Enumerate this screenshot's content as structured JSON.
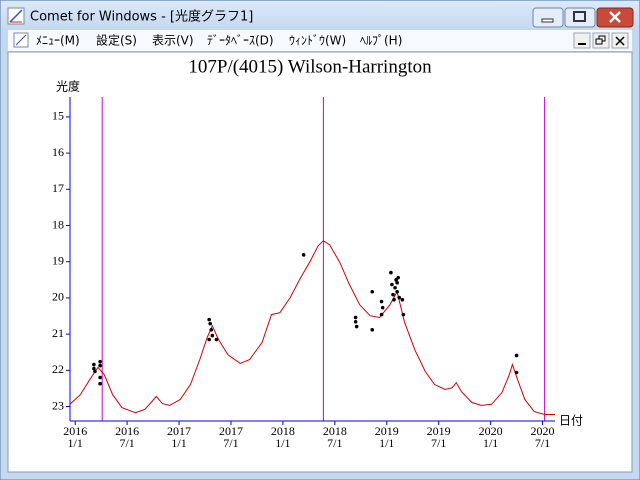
{
  "window": {
    "title": "Comet for Windows - [光度グラフ1]",
    "menu": [
      "ﾒﾆｭｰ(M)",
      "設定(S)",
      "表示(V)",
      "ﾃﾞｰﾀﾍﾞｰｽ(D)",
      "ｳｨﾝﾄﾞｳ(W)",
      "ﾍﾙﾌﾟ(H)"
    ]
  },
  "chart_data": {
    "type": "line",
    "title": "107P/(4015) Wilson-Harrington",
    "y_label": "光度",
    "x_label": "日付",
    "axis_color": "#0000ff",
    "xlim": [
      2015.95,
      2020.62
    ],
    "ylim": [
      14.45,
      23.4
    ],
    "y_inverted": true,
    "yticks": [
      15,
      16,
      17,
      18,
      19,
      20,
      21,
      22,
      23
    ],
    "xticks": [
      {
        "value": 2016.0,
        "label": [
          "2016",
          "1/1"
        ]
      },
      {
        "value": 2016.5,
        "label": [
          "2016",
          "7/1"
        ]
      },
      {
        "value": 2017.0,
        "label": [
          "2017",
          "1/1"
        ]
      },
      {
        "value": 2017.5,
        "label": [
          "2017",
          "7/1"
        ]
      },
      {
        "value": 2018.0,
        "label": [
          "2018",
          "1/1"
        ]
      },
      {
        "value": 2018.5,
        "label": [
          "2018",
          "7/1"
        ]
      },
      {
        "value": 2019.0,
        "label": [
          "2019",
          "1/1"
        ]
      },
      {
        "value": 2019.5,
        "label": [
          "2019",
          "7/1"
        ]
      },
      {
        "value": 2020.0,
        "label": [
          "2020",
          "1/1"
        ]
      },
      {
        "value": 2020.5,
        "label": [
          "2020",
          "7/1"
        ]
      }
    ],
    "markers": {
      "color": "#cc00cc",
      "x": [
        2016.26,
        2018.39,
        2020.52
      ]
    },
    "curve": {
      "color": "#d00000",
      "x": [
        2015.95,
        2016.05,
        2016.14,
        2016.22,
        2016.28,
        2016.36,
        2016.45,
        2016.58,
        2016.67,
        2016.74,
        2016.78,
        2016.84,
        2016.91,
        2017.01,
        2017.11,
        2017.2,
        2017.27,
        2017.32,
        2017.38,
        2017.47,
        2017.59,
        2017.68,
        2017.8,
        2017.89,
        2017.97,
        2018.07,
        2018.16,
        2018.26,
        2018.34,
        2018.39,
        2018.45,
        2018.55,
        2018.64,
        2018.74,
        2018.84,
        2018.93,
        2019.03,
        2019.1,
        2019.17,
        2019.27,
        2019.37,
        2019.46,
        2019.56,
        2019.63,
        2019.67,
        2019.72,
        2019.82,
        2019.91,
        2020.01,
        2020.11,
        2020.18,
        2020.21,
        2020.26,
        2020.33,
        2020.42,
        2020.52,
        2020.62
      ],
      "values": [
        22.94,
        22.67,
        22.26,
        21.92,
        22.12,
        22.67,
        23.03,
        23.17,
        23.08,
        22.86,
        22.72,
        22.92,
        22.97,
        22.81,
        22.39,
        21.7,
        21.1,
        20.77,
        21.15,
        21.57,
        21.81,
        21.7,
        21.23,
        20.46,
        20.41,
        19.99,
        19.5,
        19.0,
        18.56,
        18.42,
        18.53,
        19.03,
        19.63,
        20.19,
        20.49,
        20.54,
        20.19,
        19.83,
        20.66,
        21.43,
        22.03,
        22.39,
        22.53,
        22.48,
        22.34,
        22.59,
        22.89,
        22.97,
        22.94,
        22.61,
        22.12,
        21.84,
        22.26,
        22.81,
        23.14,
        23.22,
        23.22
      ]
    },
    "observations": {
      "color": "#000000",
      "x": [
        2016.18,
        2016.18,
        2016.19,
        2016.24,
        2016.24,
        2016.24,
        2016.24,
        2017.29,
        2017.3,
        2017.31,
        2017.29,
        2017.32,
        2017.36,
        2018.2,
        2018.7,
        2018.7,
        2018.71,
        2018.86,
        2018.86,
        2018.95,
        2018.95,
        2018.96,
        2019.04,
        2019.05,
        2019.06,
        2019.07,
        2019.08,
        2019.09,
        2019.1,
        2019.1,
        2019.11,
        2019.12,
        2019.15,
        2019.16,
        2020.25,
        2020.25
      ],
      "values": [
        21.84,
        21.95,
        22.03,
        21.76,
        21.87,
        22.2,
        22.37,
        20.6,
        20.71,
        20.88,
        21.15,
        21.04,
        21.15,
        18.81,
        20.54,
        20.66,
        20.79,
        19.83,
        20.88,
        20.1,
        20.46,
        20.27,
        19.3,
        19.63,
        19.91,
        20.05,
        19.72,
        19.5,
        19.58,
        19.83,
        19.44,
        19.99,
        20.05,
        20.46,
        21.59,
        22.06
      ]
    }
  }
}
